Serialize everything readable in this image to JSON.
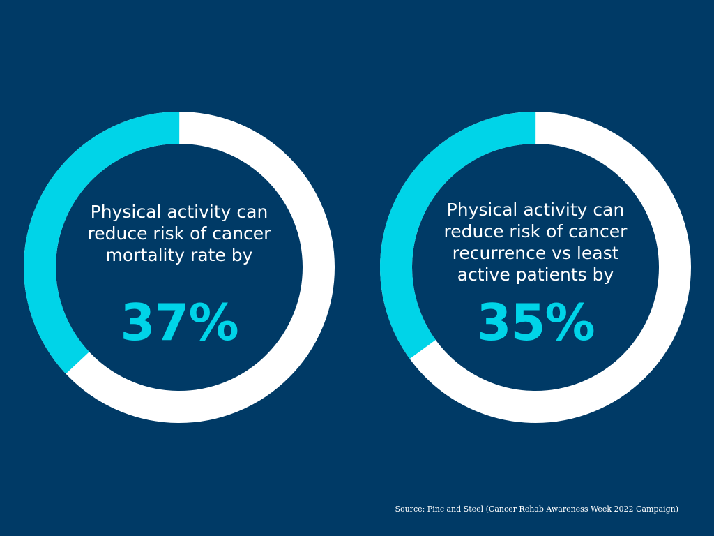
{
  "colors": {
    "background": "#003a66",
    "accent": "#00d4e8",
    "remainder": "#ffffff",
    "text": "#ffffff"
  },
  "chart_data": [
    {
      "type": "pie",
      "variant": "donut",
      "label": "Physical activity can reduce risk of cancer mortality rate by",
      "value_text": "37%",
      "value": 37,
      "max": 100
    },
    {
      "type": "pie",
      "variant": "donut",
      "label": "Physical activity can reduce risk of cancer recurrence vs least active patients by",
      "value_text": "35%",
      "value": 35,
      "max": 100
    }
  ],
  "source": "Source: Pinc and Steel (Cancer Rehab Awareness Week 2022 Campaign)"
}
